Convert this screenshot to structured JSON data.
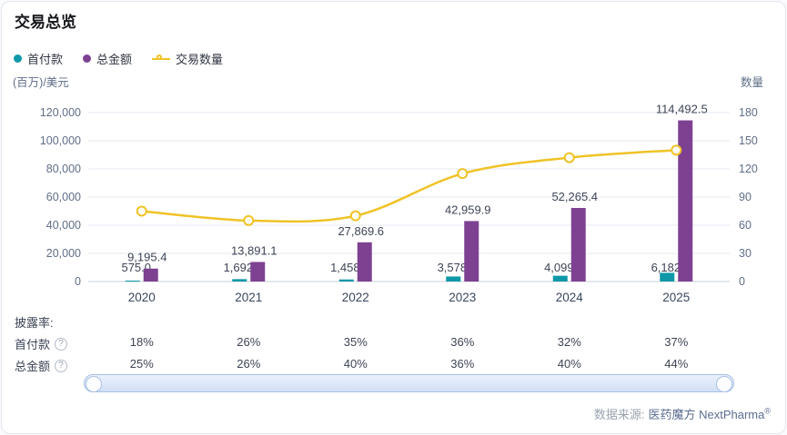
{
  "title": "交易总览",
  "legend": [
    {
      "label": "首付款",
      "color": "#0e98a8"
    },
    {
      "label": "总金额",
      "color": "#7e4192"
    },
    {
      "label": "交易数量",
      "color": "#efc327"
    }
  ],
  "chart_data": {
    "type": "bar+line",
    "categories": [
      "2020",
      "2021",
      "2022",
      "2023",
      "2024",
      "2025"
    ],
    "series": [
      {
        "name": "首付款",
        "type": "bar",
        "axis": "left",
        "color": "#0e98a8",
        "values": [
          575.0,
          1692.5,
          1458.8,
          3578.1,
          4099.7,
          6182.7
        ],
        "labels": [
          "575.0",
          "1,692.5",
          "1,458.8",
          "3,578.1",
          "4,099.7",
          "6,182.7"
        ]
      },
      {
        "name": "总金额",
        "type": "bar",
        "axis": "left",
        "color": "#7e4192",
        "values": [
          9195.4,
          13891.1,
          27869.6,
          42959.9,
          52265.4,
          114492.5
        ],
        "labels": [
          "9,195.4",
          "13,891.1",
          "27,869.6",
          "42,959.9",
          "52,265.4",
          "114,492.5"
        ]
      },
      {
        "name": "交易数量",
        "type": "line",
        "axis": "right",
        "color": "#efc327",
        "values": [
          75,
          65,
          70,
          115,
          132,
          140
        ]
      }
    ],
    "left_axis": {
      "unit": "(百万)/美元",
      "min": 0,
      "max": 120000,
      "ticks": [
        0,
        20000,
        40000,
        60000,
        80000,
        100000,
        120000
      ]
    },
    "right_axis": {
      "unit": "数量",
      "min": 0,
      "max": 180,
      "ticks": [
        0,
        30,
        60,
        90,
        120,
        150,
        180
      ]
    },
    "grid": true,
    "legend_position": "top-left"
  },
  "disclosure": {
    "title": "披露率:",
    "rows": [
      {
        "label": "首付款",
        "values": [
          "18%",
          "26%",
          "35%",
          "36%",
          "32%",
          "37%"
        ]
      },
      {
        "label": "总金额",
        "values": [
          "25%",
          "26%",
          "40%",
          "36%",
          "40%",
          "44%"
        ]
      }
    ]
  },
  "footer": {
    "source_label": "数据来源:",
    "source_value": "医药魔方 NextPharma",
    "reg_mark": "®"
  }
}
